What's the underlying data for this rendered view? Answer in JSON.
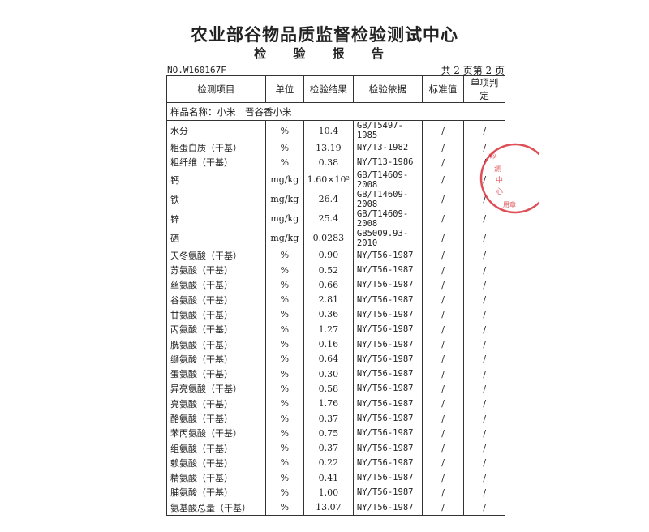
{
  "header": {
    "title": "农业部谷物品质监督检验测试中心",
    "subtitle": "检 验 报 告",
    "report_no": "NO.W160167F",
    "page_info": "共 2 页第 2 页"
  },
  "sample": {
    "label": "样品名称：小米　晋谷香小米"
  },
  "columns": [
    "检测项目",
    "单位",
    "检验结果",
    "检验依据",
    "标准值",
    "单项判定"
  ],
  "rows": [
    [
      "水分",
      "%",
      "10.4",
      "GB/T5497-1985",
      "/",
      "/"
    ],
    [
      "粗蛋白质（干基）",
      "%",
      "13.19",
      "NY/T3-1982",
      "/",
      "/"
    ],
    [
      "粗纤维（干基）",
      "%",
      "0.38",
      "NY/T13-1986",
      "/",
      "/"
    ],
    [
      "钙",
      "mg/kg",
      "1.60×10²",
      "GB/T14609-2008",
      "/",
      "/"
    ],
    [
      "铁",
      "mg/kg",
      "26.4",
      "GB/T14609-2008",
      "/",
      "/"
    ],
    [
      "锌",
      "mg/kg",
      "25.4",
      "GB/T14609-2008",
      "/",
      "/"
    ],
    [
      "硒",
      "mg/kg",
      "0.0283",
      "GB5009.93-2010",
      "/",
      "/"
    ],
    [
      "天冬氨酸（干基）",
      "%",
      "0.90",
      "NY/T56-1987",
      "/",
      "/"
    ],
    [
      "苏氨酸（干基）",
      "%",
      "0.52",
      "NY/T56-1987",
      "/",
      "/"
    ],
    [
      "丝氨酸（干基）",
      "%",
      "0.66",
      "NY/T56-1987",
      "/",
      "/"
    ],
    [
      "谷氨酸（干基）",
      "%",
      "2.81",
      "NY/T56-1987",
      "/",
      "/"
    ],
    [
      "甘氨酸（干基）",
      "%",
      "0.36",
      "NY/T56-1987",
      "/",
      "/"
    ],
    [
      "丙氨酸（干基）",
      "%",
      "1.27",
      "NY/T56-1987",
      "/",
      "/"
    ],
    [
      "胱氨酸（干基）",
      "%",
      "0.16",
      "NY/T56-1987",
      "/",
      "/"
    ],
    [
      "缬氨酸（干基）",
      "%",
      "0.64",
      "NY/T56-1987",
      "/",
      "/"
    ],
    [
      "蛋氨酸（干基）",
      "%",
      "0.30",
      "NY/T56-1987",
      "/",
      "/"
    ],
    [
      "异亮氨酸（干基）",
      "%",
      "0.58",
      "NY/T56-1987",
      "/",
      "/"
    ],
    [
      "亮氨酸（干基）",
      "%",
      "1.76",
      "NY/T56-1987",
      "/",
      "/"
    ],
    [
      "酪氨酸（干基）",
      "%",
      "0.37",
      "NY/T56-1987",
      "/",
      "/"
    ],
    [
      "苯丙氨酸（干基）",
      "%",
      "0.75",
      "NY/T56-1987",
      "/",
      "/"
    ],
    [
      "组氨酸（干基）",
      "%",
      "0.37",
      "NY/T56-1987",
      "/",
      "/"
    ],
    [
      "赖氨酸（干基）",
      "%",
      "0.22",
      "NY/T56-1987",
      "/",
      "/"
    ],
    [
      "精氨酸（干基）",
      "%",
      "0.41",
      "NY/T56-1987",
      "/",
      "/"
    ],
    [
      "脯氨酸（干基）",
      "%",
      "1.00",
      "NY/T56-1987",
      "/",
      "/"
    ],
    [
      "氨基酸总量（干基）",
      "%",
      "13.07",
      "NY/T56-1987",
      "/",
      "/"
    ]
  ],
  "stamp": {
    "color": "#d8303a",
    "text": "农业部谷物品质监督检验测试中心"
  }
}
